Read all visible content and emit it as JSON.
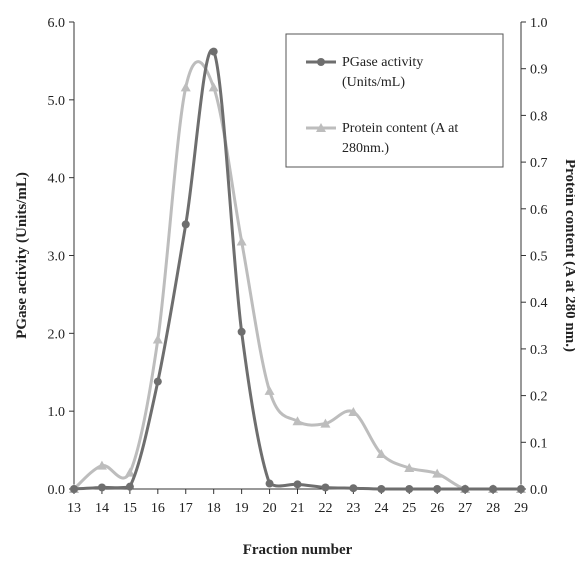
{
  "chart_data": {
    "type": "line",
    "title": "",
    "xlabel": "Fraction number",
    "ylabel_left": "PGase activity (Units/mL)",
    "ylabel_right": "Protein content (A at 280 nm.)",
    "x": [
      13,
      14,
      15,
      16,
      17,
      18,
      19,
      20,
      21,
      22,
      23,
      24,
      25,
      26,
      27,
      28,
      29
    ],
    "x_tick_labels": [
      "13",
      "14",
      "15",
      "16",
      "17",
      "18",
      "19",
      "20",
      "21",
      "22",
      "23",
      "24",
      "25",
      "26",
      "27",
      "28",
      "29"
    ],
    "xlim": [
      13,
      29
    ],
    "ylim_left": [
      0,
      6
    ],
    "ylim_right": [
      0,
      1
    ],
    "y_left_ticks": [
      "0.0",
      "1.0",
      "2.0",
      "3.0",
      "4.0",
      "5.0",
      "6.0"
    ],
    "y_right_ticks": [
      "0.0",
      "0.1",
      "0.2",
      "0.3",
      "0.4",
      "0.5",
      "0.6",
      "0.7",
      "0.8",
      "0.9",
      "1.0"
    ],
    "grid": false,
    "legend_position": "top-right",
    "series": [
      {
        "name": "PGase activity (Units/mL)",
        "legend_lines": [
          "PGase activity",
          "(Units/mL)"
        ],
        "axis": "left",
        "marker": "circle",
        "color": "#6e6e6e",
        "values": [
          0,
          0.02,
          0.03,
          1.38,
          3.4,
          5.62,
          2.02,
          0.07,
          0.06,
          0.02,
          0.01,
          0,
          0,
          0,
          0,
          0,
          0
        ]
      },
      {
        "name": "Protein content (A at 280nm.)",
        "legend_lines": [
          "Protein content (A at",
          "280nm.)"
        ],
        "axis": "right",
        "marker": "triangle",
        "color": "#bdbdbd",
        "values": [
          0.0,
          0.05,
          0.035,
          0.32,
          0.86,
          0.86,
          0.53,
          0.21,
          0.145,
          0.14,
          0.165,
          0.075,
          0.045,
          0.033,
          0.0,
          0.0,
          0.0
        ]
      }
    ]
  }
}
